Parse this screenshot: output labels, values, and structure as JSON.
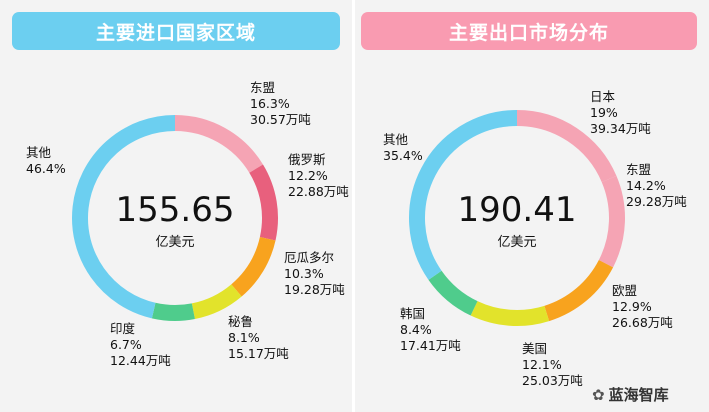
{
  "colors": {
    "header_left": "#6ccff0",
    "header_right": "#f99bb1",
    "panel_bg": "#f3f3f3",
    "segments": {
      "东盟": "#f5a4b4",
      "俄罗斯": "#e8607d",
      "厄瓜多尔": "#f8a31e",
      "秘鲁": "#e2e32b",
      "印度": "#4fcc8c",
      "其他": "#6ccff0",
      "日本": "#f5a4b4",
      "欧盟": "#f8a31e",
      "美国": "#e2e32b",
      "韩国": "#4fcc8c"
    }
  },
  "watermark": {
    "text": "蓝海智库",
    "icon": "wechat-icon"
  },
  "chart_data": [
    {
      "type": "pie",
      "title": "主要进口国家区域",
      "center_value": "155.65",
      "center_unit": "亿美元",
      "segments": [
        {
          "name": "东盟",
          "share": 16.3,
          "share_label": "16.3%",
          "amount": "30.57万吨"
        },
        {
          "name": "俄罗斯",
          "share": 12.2,
          "share_label": "12.2%",
          "amount": "22.88万吨"
        },
        {
          "name": "厄瓜多尔",
          "share": 10.3,
          "share_label": "10.3%",
          "amount": "19.28万吨"
        },
        {
          "name": "秘鲁",
          "share": 8.1,
          "share_label": "8.1%",
          "amount": "15.17万吨"
        },
        {
          "name": "印度",
          "share": 6.7,
          "share_label": "6.7%",
          "amount": "12.44万吨"
        },
        {
          "name": "其他",
          "share": 46.4,
          "share_label": "46.4%",
          "amount": ""
        }
      ]
    },
    {
      "type": "pie",
      "title": "主要出口市场分布",
      "center_value": "190.41",
      "center_unit": "亿美元",
      "segments": [
        {
          "name": "日本",
          "share": 19,
          "share_label": "19%",
          "amount": "39.34万吨"
        },
        {
          "name": "东盟",
          "share": 14.2,
          "share_label": "14.2%",
          "amount": "29.28万吨"
        },
        {
          "name": "欧盟",
          "share": 12.9,
          "share_label": "12.9%",
          "amount": "26.68万吨"
        },
        {
          "name": "美国",
          "share": 12.1,
          "share_label": "12.1%",
          "amount": "25.03万吨"
        },
        {
          "name": "韩国",
          "share": 8.4,
          "share_label": "8.4%",
          "amount": "17.41万吨"
        },
        {
          "name": "其他",
          "share": 35.4,
          "share_label": "35.4%",
          "amount": ""
        }
      ]
    }
  ]
}
